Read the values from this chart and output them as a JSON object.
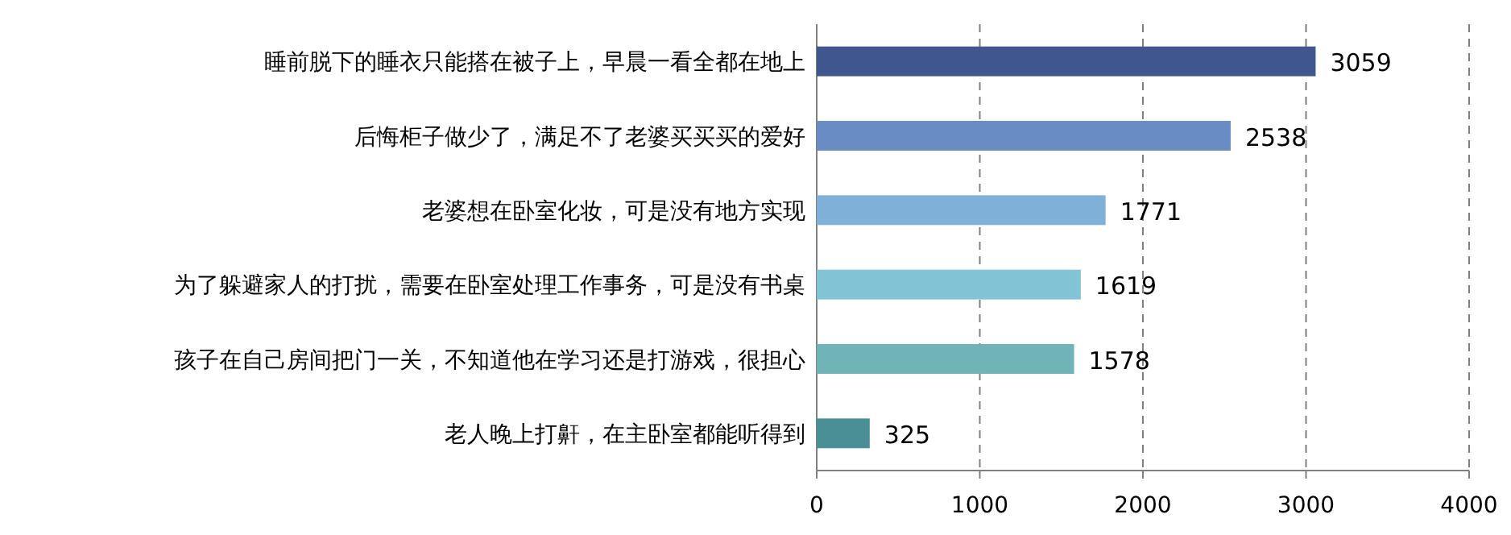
{
  "chart_data": {
    "type": "bar",
    "orientation": "horizontal",
    "categories": [
      "睡前脱下的睡衣只能搭在被子上，早晨一看全都在地上",
      "后悔柜子做少了，满足不了老婆买买买的爱好",
      "老婆想在卧室化妆，可是没有地方实现",
      "为了躲避家人的打扰，需要在卧室处理工作事务，可是没有书桌",
      "孩子在自己房间把门一关，不知道他在学习还是打游戏，很担心",
      "老人晚上打鼾，在主卧室都能听得到"
    ],
    "values": [
      3059,
      2538,
      1771,
      1619,
      1578,
      325
    ],
    "colors": [
      "#3f568f",
      "#6a8cc4",
      "#7eb0d8",
      "#82c4d6",
      "#70b4b8",
      "#4a8f96"
    ],
    "xlim": [
      0,
      4000
    ],
    "xticks": [
      0,
      1000,
      2000,
      3000,
      4000
    ],
    "grid": "x",
    "data_labels": true
  }
}
